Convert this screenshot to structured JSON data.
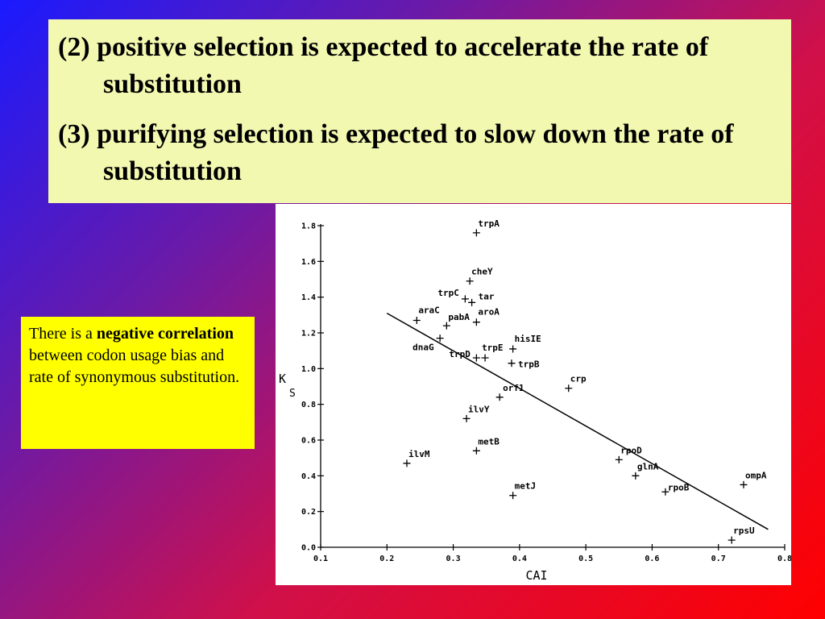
{
  "slide": {
    "points": [
      "(2) positive selection is expected to accelerate the rate of substitution",
      "(3) purifying selection is expected to slow down the rate of substitution"
    ],
    "note": {
      "prefix": "There is a ",
      "bold": "negative correlation",
      "suffix": " between codon usage bias and rate of synonymous substitution."
    }
  },
  "chart_data": {
    "type": "scatter",
    "title": "",
    "xlabel": "CAI",
    "ylabel": "K",
    "ylabel_sub": "S",
    "xlim": [
      0.1,
      0.8
    ],
    "ylim": [
      0.0,
      1.8
    ],
    "x_ticks": [
      "0.1",
      "0.2",
      "0.3",
      "0.4",
      "0.5",
      "0.6",
      "0.7",
      "0.8"
    ],
    "y_ticks": [
      "0.0",
      "0.2",
      "0.4",
      "0.6",
      "0.8",
      "1.0",
      "1.2",
      "1.4",
      "1.6",
      "1.8"
    ],
    "grid": false,
    "points": [
      {
        "label": "trpA",
        "x": 0.335,
        "y": 1.76
      },
      {
        "label": "cheY",
        "x": 0.325,
        "y": 1.49
      },
      {
        "label": "trpC",
        "x": 0.318,
        "y": 1.39
      },
      {
        "label": "tar",
        "x": 0.328,
        "y": 1.37
      },
      {
        "label": "araC",
        "x": 0.245,
        "y": 1.27
      },
      {
        "label": "pabA",
        "x": 0.29,
        "y": 1.24
      },
      {
        "label": "aroA",
        "x": 0.335,
        "y": 1.26
      },
      {
        "label": "dnaG",
        "x": 0.28,
        "y": 1.17
      },
      {
        "label": "hisIE",
        "x": 0.39,
        "y": 1.11
      },
      {
        "label": "trpD",
        "x": 0.335,
        "y": 1.06
      },
      {
        "label": "trpE",
        "x": 0.348,
        "y": 1.06
      },
      {
        "label": "trpB",
        "x": 0.388,
        "y": 1.03
      },
      {
        "label": "crp",
        "x": 0.474,
        "y": 0.89
      },
      {
        "label": "orf1",
        "x": 0.37,
        "y": 0.84
      },
      {
        "label": "ilvY",
        "x": 0.32,
        "y": 0.72
      },
      {
        "label": "metB",
        "x": 0.335,
        "y": 0.54
      },
      {
        "label": "ilvM",
        "x": 0.23,
        "y": 0.47
      },
      {
        "label": "rpoD",
        "x": 0.55,
        "y": 0.49
      },
      {
        "label": "glnA",
        "x": 0.575,
        "y": 0.4
      },
      {
        "label": "rpoB",
        "x": 0.62,
        "y": 0.31
      },
      {
        "label": "ompA",
        "x": 0.738,
        "y": 0.35
      },
      {
        "label": "metJ",
        "x": 0.39,
        "y": 0.29
      },
      {
        "label": "rpsU",
        "x": 0.72,
        "y": 0.04
      }
    ],
    "regression_line": {
      "x": [
        0.2,
        0.775
      ],
      "y": [
        1.31,
        0.1
      ]
    }
  }
}
